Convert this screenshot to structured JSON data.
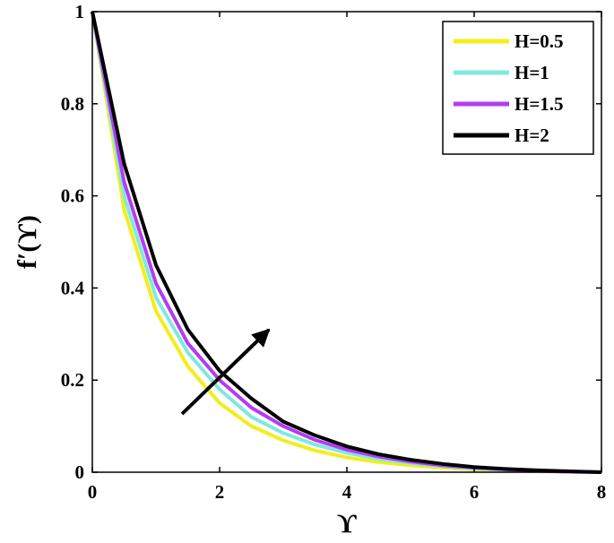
{
  "chart_data": {
    "type": "line",
    "title": "",
    "xlabel": "ϒ",
    "ylabel": "f′(ϒ)",
    "xlim": [
      0,
      8
    ],
    "ylim": [
      0,
      1
    ],
    "xticks": [
      "0",
      "2",
      "4",
      "6",
      "8"
    ],
    "yticks": [
      "0",
      "0.2",
      "0.4",
      "0.6",
      "0.8",
      "1"
    ],
    "grid": false,
    "legend_position": "top-right",
    "annotation": "arrow indicating increasing H",
    "x": [
      0,
      0.5,
      1,
      1.5,
      2,
      2.5,
      3,
      3.5,
      4,
      4.5,
      5,
      5.5,
      6,
      6.5,
      7,
      7.5,
      8
    ],
    "series": [
      {
        "name": "H=0.5",
        "color": "#f2ee1c",
        "values": [
          1.0,
          0.57,
          0.35,
          0.23,
          0.15,
          0.1,
          0.069,
          0.047,
          0.032,
          0.022,
          0.015,
          0.01,
          0.006,
          0.004,
          0.002,
          0.001,
          0.0
        ]
      },
      {
        "name": "H=1",
        "color": "#7fe8e0",
        "values": [
          1.0,
          0.6,
          0.38,
          0.26,
          0.18,
          0.12,
          0.085,
          0.06,
          0.042,
          0.029,
          0.02,
          0.013,
          0.008,
          0.005,
          0.003,
          0.001,
          0.0
        ]
      },
      {
        "name": "H=1.5",
        "color": "#b43cf0",
        "values": [
          1.0,
          0.63,
          0.41,
          0.28,
          0.2,
          0.14,
          0.1,
          0.07,
          0.049,
          0.034,
          0.023,
          0.015,
          0.01,
          0.006,
          0.003,
          0.001,
          0.0
        ]
      },
      {
        "name": "H=2",
        "color": "#000000",
        "values": [
          1.0,
          0.67,
          0.45,
          0.31,
          0.22,
          0.16,
          0.11,
          0.08,
          0.056,
          0.039,
          0.027,
          0.018,
          0.011,
          0.007,
          0.004,
          0.002,
          0.0
        ]
      }
    ]
  }
}
